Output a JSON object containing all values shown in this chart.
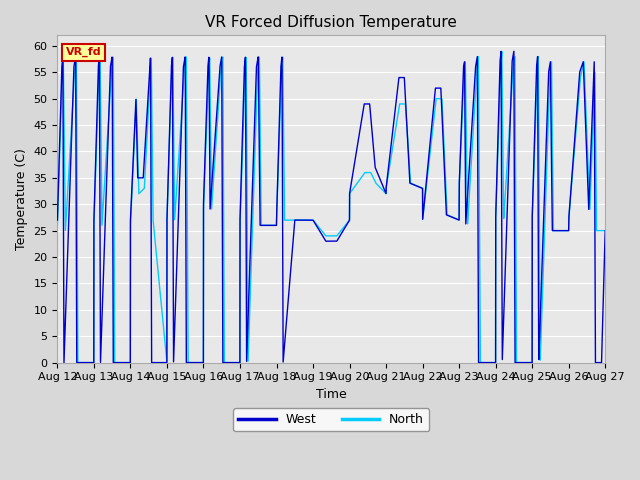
{
  "title": "VR Forced Diffusion Temperature",
  "xlabel": "Time",
  "ylabel": "Temperature (C)",
  "ylim": [
    0,
    62
  ],
  "yticks": [
    0,
    5,
    10,
    15,
    20,
    25,
    30,
    35,
    40,
    45,
    50,
    55,
    60
  ],
  "xtick_labels": [
    "Aug 12",
    "Aug 13",
    "Aug 14",
    "Aug 15",
    "Aug 16",
    "Aug 17",
    "Aug 18",
    "Aug 19",
    "Aug 20",
    "Aug 21",
    "Aug 22",
    "Aug 23",
    "Aug 24",
    "Aug 25",
    "Aug 26",
    "Aug 27"
  ],
  "west_color": "#0000cc",
  "north_color": "#00ccff",
  "plot_bg_color": "#e8e8e8",
  "fig_bg_color": "#d8d8d8",
  "annotation_text": "VR_fd",
  "annotation_bg": "#ffff99",
  "annotation_border": "#cc0000",
  "legend_west": "West",
  "legend_north": "North",
  "title_fontsize": 11,
  "axis_label_fontsize": 9,
  "tick_fontsize": 8,
  "line_width": 1.0
}
